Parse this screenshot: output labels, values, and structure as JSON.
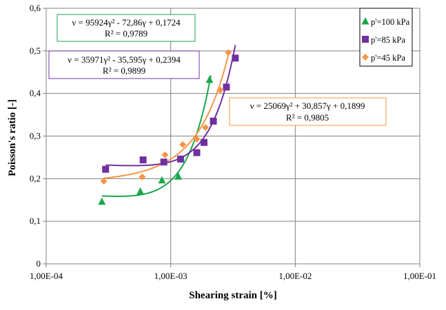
{
  "chart_data": {
    "type": "scatter",
    "xlabel": "Shearing strain [%]",
    "ylabel": "Poisson's ratio [-]",
    "x_scale": "log",
    "xlim": [
      0.0001,
      0.1
    ],
    "ylim": [
      0,
      0.6
    ],
    "x_ticks": [
      "1,00E-04",
      "1,00E-03",
      "1,00E-02",
      "1,00E-01"
    ],
    "y_ticks": [
      "0",
      "0,1",
      "0,2",
      "0,3",
      "0,4",
      "0,5",
      "0,6"
    ],
    "grid": true,
    "legend_position": "top-right",
    "series": [
      {
        "name": "p'=100 kPa",
        "color": "#1aa64b",
        "marker": "triangle",
        "x": [
          0.00028,
          0.00057,
          0.00085,
          0.00115,
          0.00205
        ],
        "y": [
          0.146,
          0.17,
          0.196,
          0.205,
          0.432
        ],
        "trendline": {
          "equation": "ν = 95924γ² - 72,86γ + 0,1724",
          "r2": "R² = 0,9789",
          "a": 95924,
          "b": -72.86,
          "c": 0.1724,
          "x_range": [
            0.00028,
            0.0021
          ]
        }
      },
      {
        "name": "p'=85 kPa",
        "color": "#7030a0",
        "marker": "square",
        "x": [
          0.0003,
          0.0006,
          0.00088,
          0.0012,
          0.00162,
          0.00185,
          0.0022,
          0.0028,
          0.0033
        ],
        "y": [
          0.222,
          0.244,
          0.239,
          0.246,
          0.261,
          0.285,
          0.335,
          0.415,
          0.483
        ],
        "trendline": {
          "equation": "ν = 35971γ² - 35,595γ + 0,2394",
          "r2": "R² = 0,9899",
          "a": 35971,
          "b": -35.595,
          "c": 0.2394,
          "x_range": [
            0.0003,
            0.0033
          ]
        }
      },
      {
        "name": "p'=45 kPa",
        "color": "#f79646",
        "marker": "diamond",
        "x": [
          0.00029,
          0.00059,
          0.0009,
          0.00125,
          0.00162,
          0.0019,
          0.0025,
          0.0029
        ],
        "y": [
          0.194,
          0.204,
          0.256,
          0.28,
          0.293,
          0.32,
          0.408,
          0.496
        ],
        "trendline": {
          "equation": "ν = 25069γ² + 30,857γ + 0,1899",
          "r2": "R² = 0,9805",
          "a": 25069,
          "b": 30.857,
          "c": 0.1899,
          "x_range": [
            0.00029,
            0.0029
          ]
        }
      }
    ]
  }
}
